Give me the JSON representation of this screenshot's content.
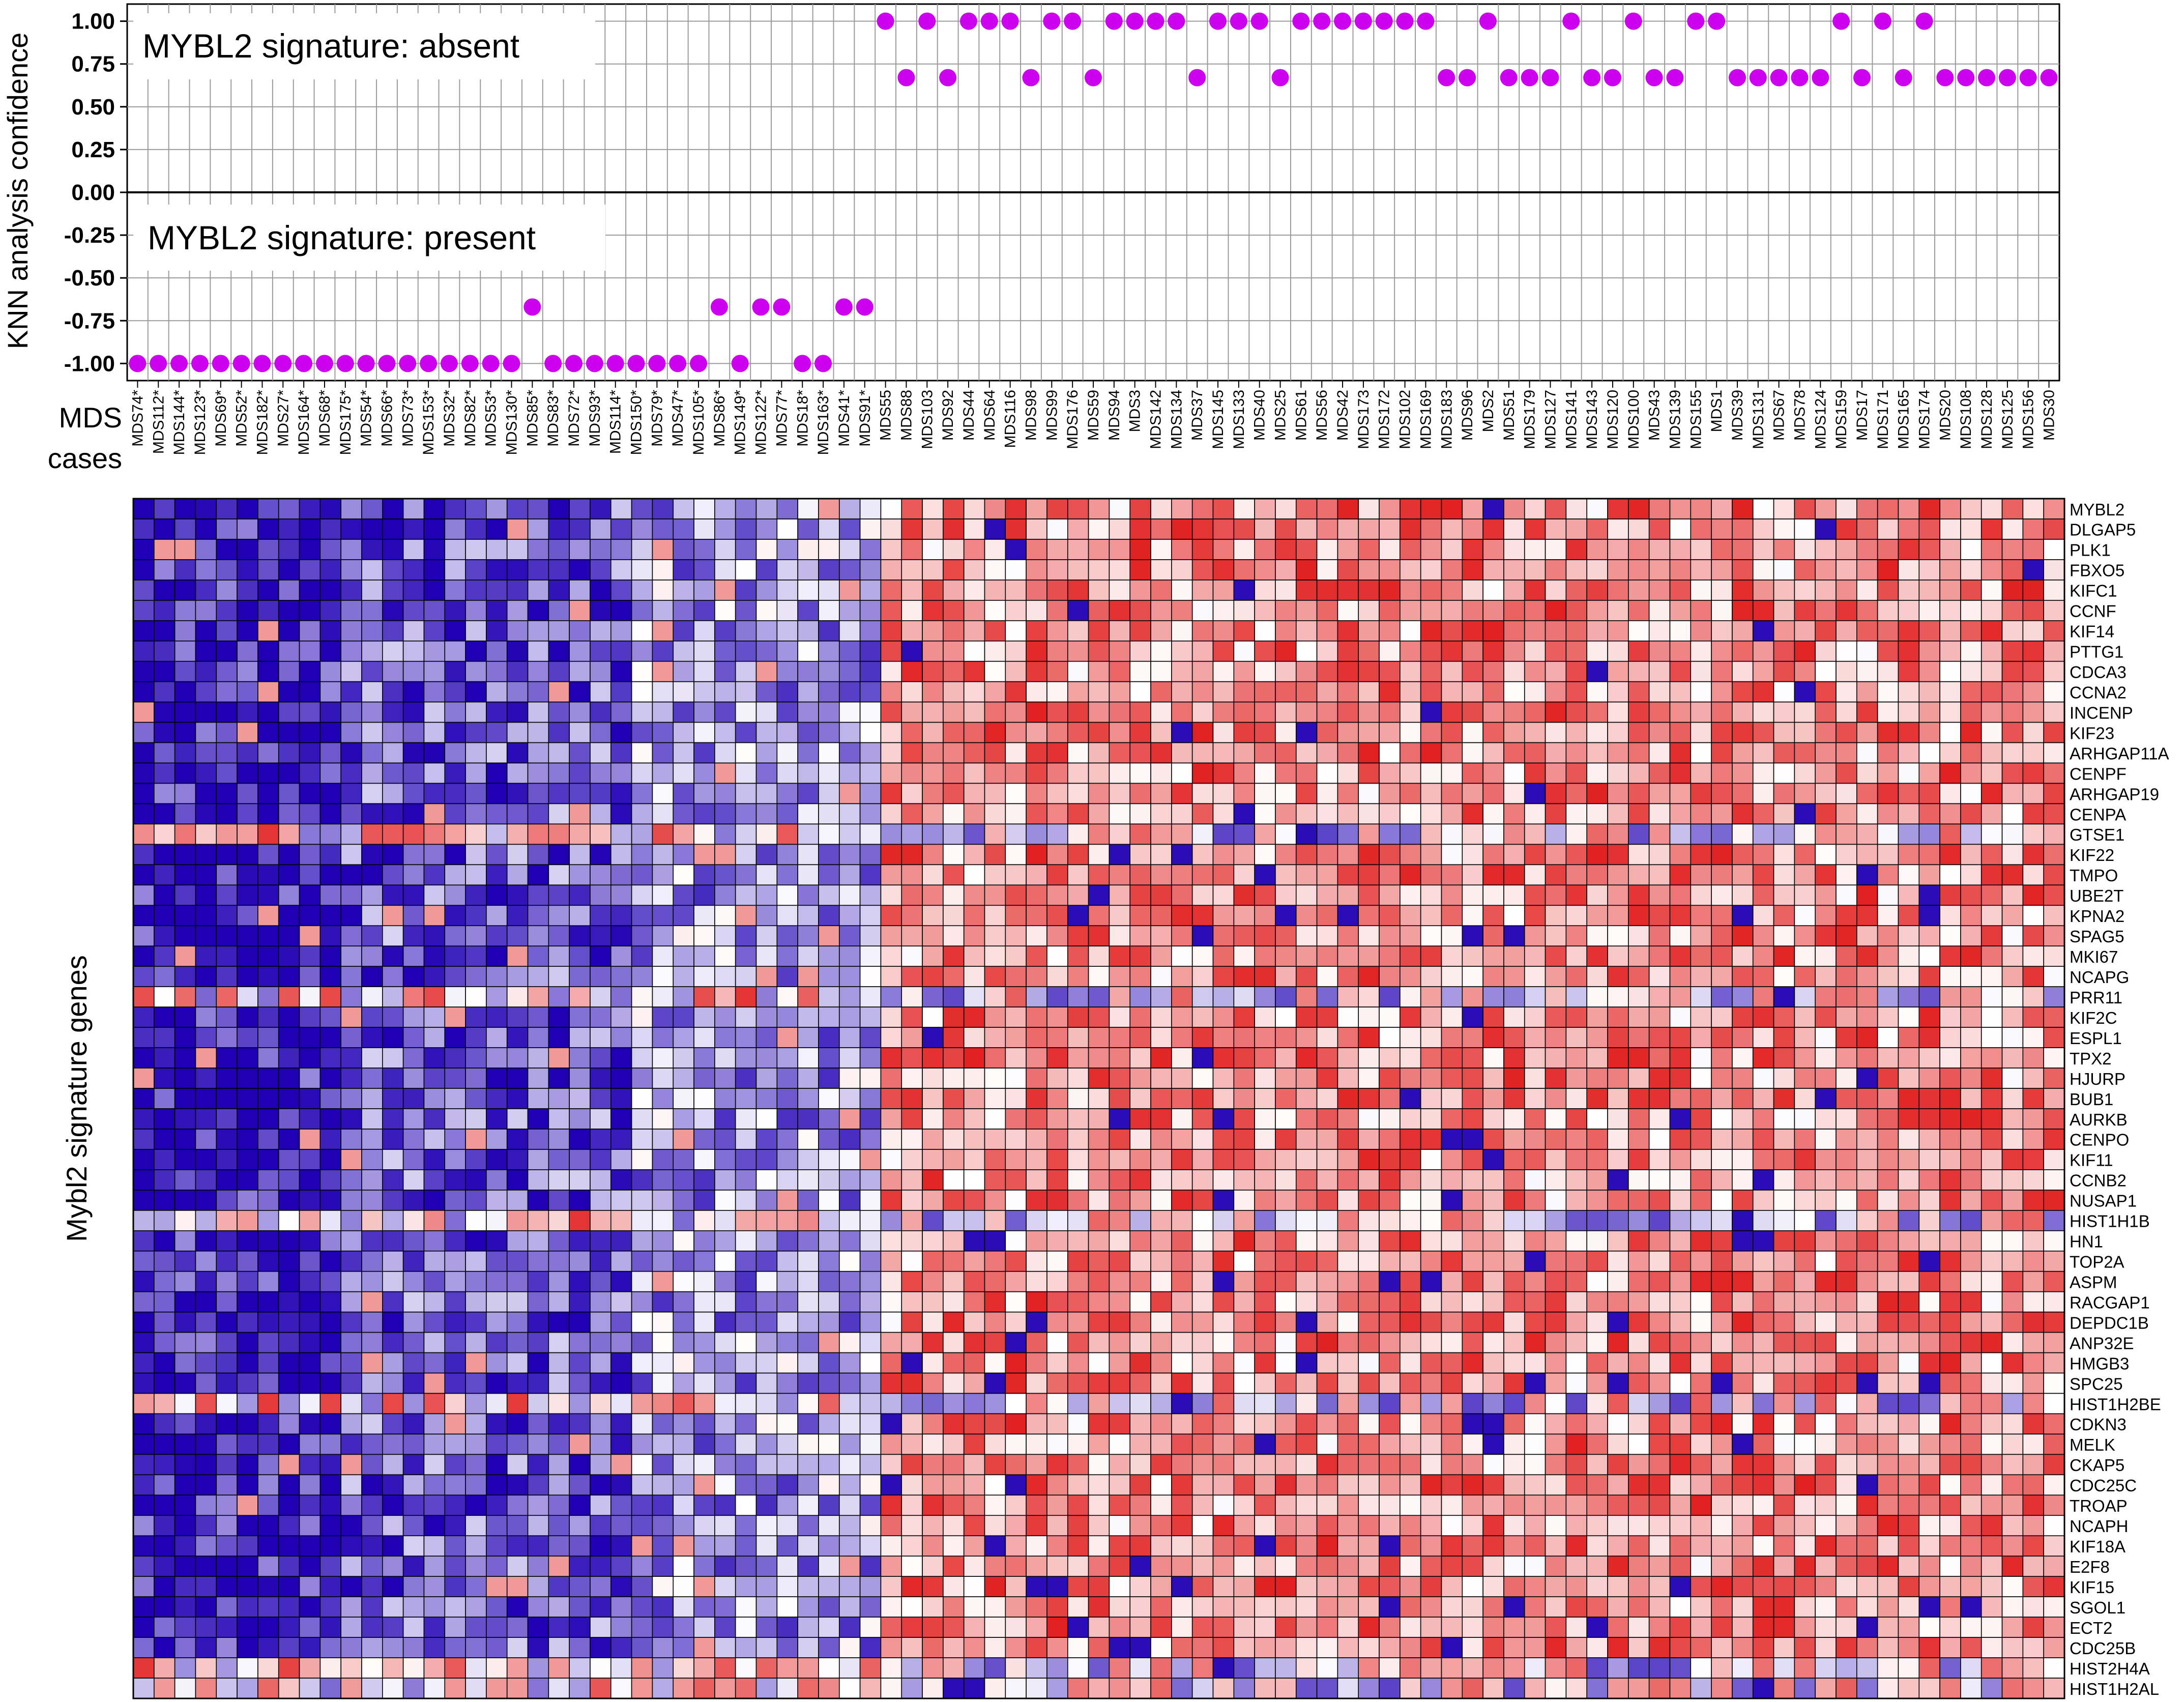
{
  "chart_data": [
    {
      "type": "scatter",
      "ylabel": "KNN analysis confidence",
      "xlabel": "MDS cases",
      "yticks": [
        "1.00",
        "0.75",
        "0.50",
        "0.25",
        "0.00",
        "-0.25",
        "-0.50",
        "-0.75",
        "-1.00"
      ],
      "ylim": [
        -1.1,
        1.1
      ],
      "grid": true,
      "annotations": [
        "MYBL2 signature: absent",
        "MYBL2 signature: present"
      ],
      "point_color": "#cc00ee",
      "cases": [
        "MDS74*",
        "MDS112*",
        "MDS144*",
        "MDS123*",
        "MDS69*",
        "MDS52*",
        "MDS182*",
        "MDS27*",
        "MDS164*",
        "MDS68*",
        "MDS175*",
        "MDS54*",
        "MDS66*",
        "MDS73*",
        "MDS153*",
        "MDS32*",
        "MDS82*",
        "MDS53*",
        "MDS130*",
        "MDS85*",
        "MDS83*",
        "MDS72*",
        "MDS93*",
        "MDS114*",
        "MDS150*",
        "MDS79*",
        "MDS47*",
        "MDS105*",
        "MDS86*",
        "MDS149*",
        "MDS122*",
        "MDS77*",
        "MDS18*",
        "MDS163*",
        "MDS41*",
        "MDS91*",
        "MDS55",
        "MDS88",
        "MDS103",
        "MDS92",
        "MDS44",
        "MDS64",
        "MDS116",
        "MDS98",
        "MDS99",
        "MDS176",
        "MDS59",
        "MDS94",
        "MDS3",
        "MDS142",
        "MDS134",
        "MDS37",
        "MDS145",
        "MDS133",
        "MDS40",
        "MDS25",
        "MDS61",
        "MDS56",
        "MDS42",
        "MDS173",
        "MDS172",
        "MDS102",
        "MDS169",
        "MDS183",
        "MDS96",
        "MDS2",
        "MDS51",
        "MDS179",
        "MDS127",
        "MDS141",
        "MDS143",
        "MDS120",
        "MDS100",
        "MDS43",
        "MDS139",
        "MDS155",
        "MDS1",
        "MDS39",
        "MDS131",
        "MDS67",
        "MDS78",
        "MDS124",
        "MDS159",
        "MDS17",
        "MDS171",
        "MDS165",
        "MDS174",
        "MDS20",
        "MDS108",
        "MDS128",
        "MDS125",
        "MDS156",
        "MDS30"
      ],
      "values": [
        -1,
        -1,
        -1,
        -1,
        -1,
        -1,
        -1,
        -1,
        -1,
        -1,
        -1,
        -1,
        -1,
        -1,
        -1,
        -1,
        -1,
        -1,
        -1,
        -0.67,
        -1,
        -1,
        -1,
        -1,
        -1,
        -1,
        -1,
        -1,
        -0.67,
        -1,
        -0.67,
        -0.67,
        -1,
        -1,
        -0.67,
        -0.67,
        1,
        0.67,
        1,
        0.67,
        1,
        1,
        1,
        0.67,
        1,
        1,
        0.67,
        1,
        1,
        1,
        1,
        0.67,
        1,
        1,
        1,
        0.67,
        1,
        1,
        1,
        1,
        1,
        1,
        1,
        0.67,
        0.67,
        1,
        0.67,
        0.67,
        0.67,
        1,
        0.67,
        0.67,
        1,
        0.67,
        0.67,
        1,
        1,
        0.67,
        0.67,
        0.67,
        0.67,
        0.67,
        1,
        0.67,
        1,
        0.67,
        1,
        0.67,
        0.67,
        0.67,
        0.67,
        0.67,
        0.67
      ]
    },
    {
      "type": "heatmap",
      "ylabel": "Mybl2 signature genes",
      "colorscale": [
        "#1f00b3",
        "#ffffff",
        "#dd0000"
      ],
      "genes": [
        "MYBL2",
        "DLGAP5",
        "PLK1",
        "FBXO5",
        "KIFC1",
        "CCNF",
        "KIF14",
        "PTTG1",
        "CDCA3",
        "CCNA2",
        "INCENP",
        "KIF23",
        "ARHGAP11A",
        "CENPF",
        "ARHGAP19",
        "CENPA",
        "GTSE1",
        "KIF22",
        "TMPO",
        "UBE2T",
        "KPNA2",
        "SPAG5",
        "MKI67",
        "NCAPG",
        "PRR11",
        "KIF2C",
        "ESPL1",
        "TPX2",
        "HJURP",
        "BUB1",
        "AURKB",
        "CENPO",
        "KIF11",
        "CCNB2",
        "NUSAP1",
        "HIST1H1B",
        "HN1",
        "TOP2A",
        "ASPM",
        "RACGAP1",
        "DEPDC1B",
        "ANP32E",
        "HMGB3",
        "SPC25",
        "HIST1H2BE",
        "CDKN3",
        "MELK",
        "CKAP5",
        "CDC25C",
        "TROAP",
        "NCAPH",
        "KIF18A",
        "E2F8",
        "KIF15",
        "SGOL1",
        "ECT2",
        "CDC25B",
        "HIST2H4A",
        "HIST1H2AL"
      ],
      "columns": "same as MDS cases above",
      "pattern": "cases 1-36 (asterisked) predominantly low expression (blue); cases 37-93 predominantly high expression (red)"
    }
  ]
}
